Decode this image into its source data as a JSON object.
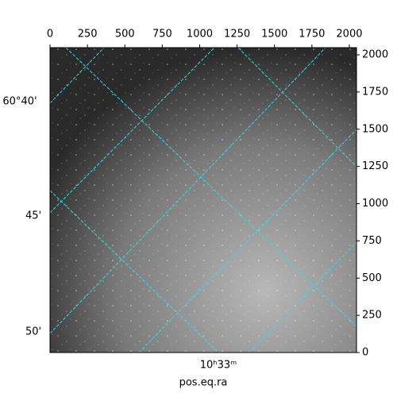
{
  "chart_data": {
    "type": "image",
    "xlabel": "pos.eq.ra",
    "xlim": [
      0,
      2048
    ],
    "xticks": [
      0,
      250,
      500,
      750,
      1000,
      1250,
      1500,
      1750,
      2000
    ],
    "ylim": [
      0,
      2048
    ],
    "yticks": [
      0,
      250,
      500,
      750,
      1000,
      1250,
      1500,
      1750,
      2000
    ],
    "dec_tick_labels": [
      "60°40'",
      "45'",
      "50'"
    ],
    "ra_tick_labels": [
      "10ʰ33ᵐ"
    ],
    "grid": true
  }
}
